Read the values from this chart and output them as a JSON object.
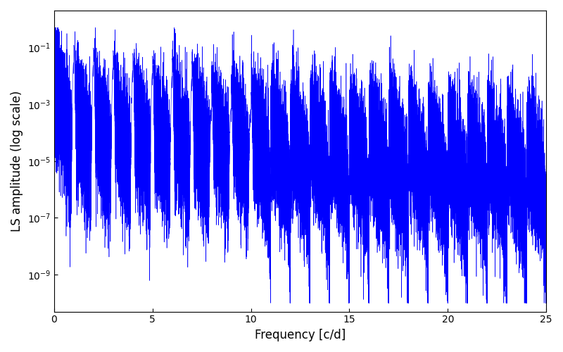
{
  "xlabel": "Frequency [c/d]",
  "ylabel": "LS amplitude (log scale)",
  "xlim": [
    0,
    25
  ],
  "ylim_log": [
    -10.3,
    0.3
  ],
  "line_color": "#0000ff",
  "line_width": 0.4,
  "background_color": "#ffffff",
  "xticks": [
    0,
    5,
    10,
    15,
    20,
    25
  ],
  "yticks_log": [
    -9,
    -7,
    -5,
    -3,
    -1
  ],
  "figsize": [
    8.0,
    5.0
  ],
  "dpi": 100,
  "seed": 12345,
  "n_points": 50000,
  "freq_max": 25.0
}
